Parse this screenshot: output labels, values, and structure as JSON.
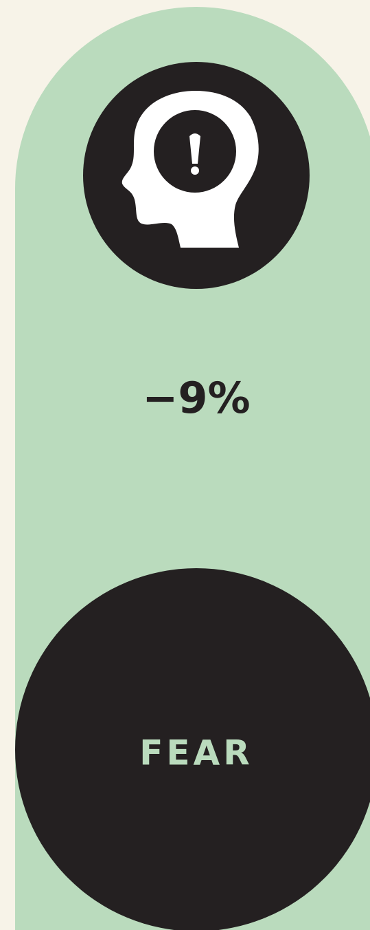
{
  "stat": {
    "value": "−9%",
    "label": "FEAR"
  }
}
